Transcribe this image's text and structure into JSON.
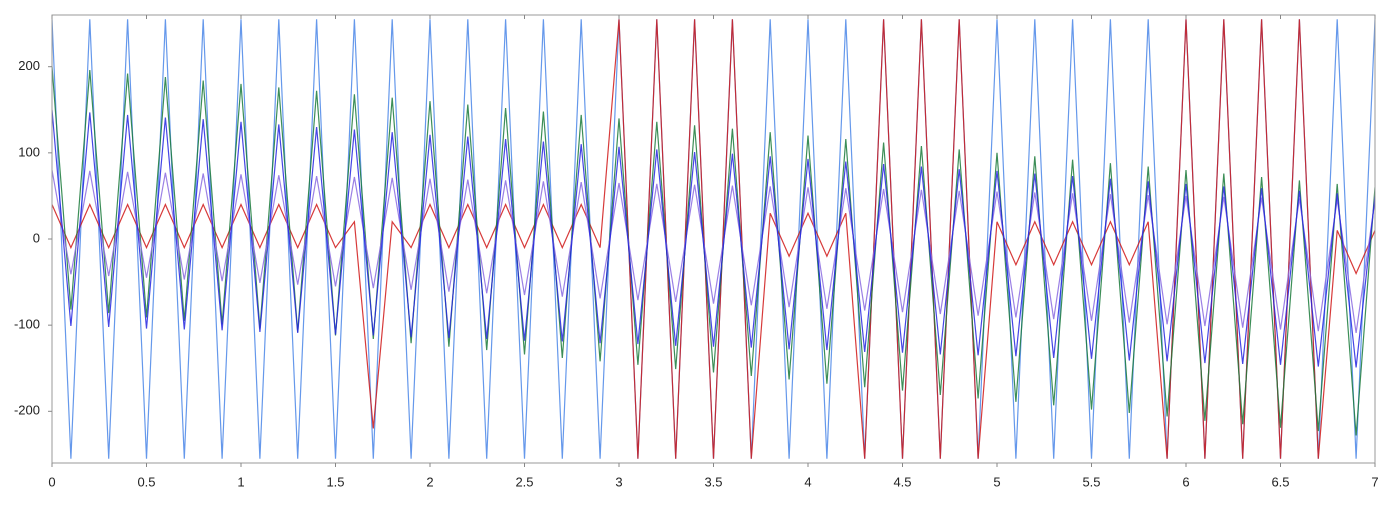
{
  "chart_data": {
    "type": "line",
    "x": [
      0,
      0.1,
      0.2,
      0.3,
      0.4,
      0.5,
      0.6,
      0.7,
      0.8,
      0.9,
      1,
      1.1,
      1.2,
      1.3,
      1.4,
      1.5,
      1.6,
      1.7,
      1.8,
      1.9,
      2,
      2.1,
      2.2,
      2.3,
      2.4,
      2.5,
      2.6,
      2.7,
      2.8,
      2.9,
      3,
      3.1,
      3.2,
      3.3,
      3.4,
      3.5,
      3.6,
      3.7,
      3.8,
      3.9,
      4,
      4.1,
      4.2,
      4.3,
      4.4,
      4.5,
      4.6,
      4.7,
      4.8,
      4.9,
      5,
      5.1,
      5.2,
      5.3,
      5.4,
      5.5,
      5.6,
      5.7,
      5.8,
      5.9,
      6,
      6.1,
      6.2,
      6.3,
      6.4,
      6.5,
      6.6,
      6.7,
      6.8,
      6.9,
      7
    ],
    "series": [
      {
        "color": "#4a86e8",
        "values": [
          255,
          -255,
          255,
          -255,
          255,
          -255,
          255,
          -255,
          255,
          -255,
          255,
          -255,
          255,
          -255,
          255,
          -255,
          255,
          -255,
          255,
          -255,
          255,
          -255,
          255,
          -255,
          255,
          -255,
          255,
          -255,
          255,
          -255,
          255,
          -255,
          255,
          -255,
          255,
          -255,
          255,
          -255,
          255,
          -255,
          255,
          -255,
          255,
          -255,
          255,
          -255,
          255,
          -255,
          255,
          -255,
          255,
          -255,
          255,
          -255,
          255,
          -255,
          255,
          -255,
          255,
          -255,
          255,
          -255,
          255,
          -255,
          255,
          -255,
          255,
          -255,
          255,
          -255,
          255
        ]
      },
      {
        "color": "#d01818",
        "values": [
          40,
          -10,
          40,
          -10,
          40,
          -10,
          40,
          -10,
          40,
          -10,
          40,
          -10,
          40,
          -10,
          40,
          -10,
          20,
          -220,
          20,
          -10,
          40,
          -10,
          40,
          -10,
          40,
          -10,
          40,
          -10,
          40,
          -10,
          255,
          -255,
          255,
          -255,
          255,
          -255,
          255,
          -255,
          30,
          -20,
          30,
          -20,
          30,
          -255,
          255,
          -255,
          255,
          -255,
          255,
          -255,
          20,
          -30,
          20,
          -30,
          20,
          -30,
          20,
          -30,
          20,
          -255,
          255,
          -255,
          255,
          -255,
          255,
          -255,
          255,
          -255,
          10,
          -40,
          10
        ]
      },
      {
        "color": "#1a7a3a",
        "values": [
          200,
          -82,
          196,
          -86,
          192,
          -91,
          188,
          -95,
          184,
          -99,
          180,
          -104,
          176,
          -108,
          172,
          -112,
          168,
          -116,
          164,
          -121,
          160,
          -125,
          156,
          -129,
          152,
          -134,
          148,
          -138,
          144,
          -142,
          140,
          -146,
          136,
          -151,
          132,
          -155,
          128,
          -159,
          124,
          -163,
          120,
          -168,
          116,
          -172,
          112,
          -176,
          108,
          -181,
          104,
          -185,
          100,
          -189,
          96,
          -193,
          92,
          -198,
          88,
          -202,
          84,
          -206,
          80,
          -211,
          76,
          -215,
          72,
          -219,
          68,
          -223,
          64,
          -228,
          60
        ]
      },
      {
        "color": "#8a6ae0",
        "values": [
          80,
          -41,
          79,
          -43,
          78,
          -45,
          77,
          -47,
          76,
          -49,
          75,
          -51,
          74,
          -53,
          73,
          -55,
          72,
          -57,
          71,
          -59,
          70,
          -61,
          69,
          -63,
          68,
          -65,
          67,
          -67,
          66,
          -69,
          65,
          -71,
          64,
          -73,
          63,
          -75,
          62,
          -77,
          61,
          -79,
          60,
          -81,
          59,
          -83,
          58,
          -85,
          57,
          -87,
          56,
          -89,
          55,
          -91,
          54,
          -93,
          53,
          -95,
          52,
          -97,
          51,
          -99,
          50,
          -101,
          49,
          -103,
          48,
          -105,
          47,
          -107,
          46,
          -109,
          45
        ]
      },
      {
        "color": "#2424e0",
        "values": [
          150,
          -101,
          147,
          -102,
          144,
          -104,
          141,
          -105,
          139,
          -106,
          136,
          -108,
          133,
          -109,
          130,
          -111,
          127,
          -112,
          124,
          -114,
          121,
          -115,
          119,
          -116,
          116,
          -118,
          113,
          -119,
          110,
          -121,
          107,
          -122,
          104,
          -124,
          101,
          -125,
          99,
          -126,
          96,
          -128,
          93,
          -129,
          90,
          -131,
          87,
          -132,
          84,
          -134,
          81,
          -135,
          79,
          -136,
          76,
          -138,
          73,
          -139,
          70,
          -141,
          67,
          -142,
          64,
          -144,
          61,
          -145,
          59,
          -146,
          56,
          -148,
          53,
          -149,
          50
        ]
      }
    ],
    "xlim": [
      0,
      7
    ],
    "xticks": [
      0,
      0.5,
      1,
      1.5,
      2,
      2.5,
      3,
      3.5,
      4,
      4.5,
      5,
      5.5,
      6,
      6.5,
      7
    ],
    "ylim": [
      -260,
      260
    ],
    "yticks": [
      -200,
      -100,
      0,
      100,
      200
    ],
    "grid": false
  }
}
